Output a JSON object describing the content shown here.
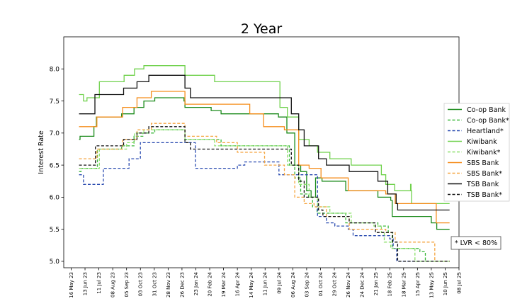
{
  "chart_data": {
    "type": "line",
    "title": "2 Year",
    "xlabel": "",
    "ylabel": "Interest Rate",
    "xlim": [
      "2023-05-01",
      "2025-07-08"
    ],
    "ylim": [
      4.9,
      8.5
    ],
    "yticks": [
      5.0,
      5.5,
      6.0,
      6.5,
      7.0,
      7.5,
      8.0
    ],
    "ytick_labels": [
      "5.0",
      "5.5",
      "6.0",
      "6.5",
      "7.0",
      "7.5",
      "8.0"
    ],
    "xticks": [
      "2023-05-16",
      "2023-06-13",
      "2023-07-11",
      "2023-08-08",
      "2023-09-05",
      "2023-10-03",
      "2023-10-31",
      "2023-11-28",
      "2023-12-26",
      "2024-01-23",
      "2024-02-20",
      "2024-03-19",
      "2024-04-16",
      "2024-05-14",
      "2024-06-11",
      "2024-07-09",
      "2024-08-06",
      "2024-09-03",
      "2024-10-01",
      "2024-10-29",
      "2024-11-26",
      "2024-12-24",
      "2025-01-21",
      "2025-02-18",
      "2025-03-18",
      "2025-04-15",
      "2025-05-13",
      "2025-06-10",
      "2025-07-08"
    ],
    "xtick_labels": [
      "16 May 23",
      "13 Jun 23",
      "11 Jul 23",
      "08 Aug 23",
      "05 Sep 23",
      "03 Oct 23",
      "31 Oct 23",
      "28 Nov 23",
      "26 Dec 23",
      "23 Jan 24",
      "20 Feb 24",
      "19 Mar 24",
      "16 Apr 24",
      "14 May 24",
      "11 Jun 24",
      "09 Jul 24",
      "06 Aug 24",
      "03 Sep 24",
      "01 Oct 24",
      "29 Oct 24",
      "26 Nov 24",
      "24 Dec 24",
      "21 Jan 25",
      "18 Feb 25",
      "18 Mar 25",
      "15 Apr 25",
      "13 May 25",
      "10 Jun 25",
      "08 Jul 25"
    ],
    "grid": false,
    "legend_position": "right",
    "annotation": "* LVR < 80%",
    "series": [
      {
        "name": "Co-op Bank",
        "color": "#1a8a1a",
        "dash": "solid",
        "x": [
          "2023-06-01",
          "2023-06-03",
          "2023-07-01",
          "2023-07-06",
          "2023-08-26",
          "2023-09-20",
          "2023-10-10",
          "2023-11-01",
          "2023-12-30",
          "2024-01-01",
          "2024-02-23",
          "2024-03-14",
          "2024-04-16",
          "2024-06-01",
          "2024-07-08",
          "2024-07-25",
          "2024-08-10",
          "2024-08-22",
          "2024-09-03",
          "2024-09-12",
          "2024-09-21",
          "2024-10-04",
          "2024-11-21",
          "2024-12-05",
          "2025-01-25",
          "2025-02-20",
          "2025-02-23",
          "2025-04-15",
          "2025-05-13",
          "2025-05-24",
          "2025-06-01",
          "2025-06-19"
        ],
        "y": [
          6.9,
          6.95,
          7.1,
          7.25,
          7.3,
          7.4,
          7.5,
          7.55,
          7.5,
          7.4,
          7.35,
          7.3,
          7.3,
          7.3,
          7.25,
          7.0,
          6.5,
          6.4,
          6.1,
          6.0,
          6.3,
          6.25,
          6.1,
          6.1,
          6.0,
          5.95,
          5.7,
          5.7,
          5.6,
          5.5,
          5.5,
          5.5
        ]
      },
      {
        "name": "Co-op Bank*",
        "color": "#3cb83c",
        "dash": "dashed",
        "x": [
          "2023-06-01",
          "2023-06-05",
          "2023-07-08",
          "2023-08-26",
          "2023-09-20",
          "2023-10-08",
          "2023-11-01",
          "2023-12-30",
          "2024-01-01",
          "2024-02-23",
          "2024-03-14",
          "2024-04-16",
          "2024-07-05",
          "2024-07-30",
          "2024-08-10",
          "2024-08-22",
          "2024-09-07",
          "2024-09-15",
          "2024-09-24",
          "2024-10-08",
          "2024-11-21",
          "2024-12-05",
          "2025-01-25",
          "2025-02-15",
          "2025-02-23",
          "2025-04-15",
          "2025-04-20",
          "2025-05-01",
          "2025-05-13",
          "2025-06-19"
        ],
        "y": [
          6.4,
          6.45,
          6.75,
          6.8,
          6.95,
          7.0,
          7.05,
          7.05,
          6.9,
          6.9,
          6.8,
          6.8,
          6.8,
          6.5,
          6.3,
          6.05,
          6.0,
          5.85,
          5.75,
          5.75,
          5.6,
          5.6,
          5.55,
          5.45,
          5.2,
          5.2,
          5.15,
          5.0,
          5.0,
          5.0
        ]
      },
      {
        "name": "Heartland*",
        "color": "#2a4bb0",
        "dash": "dashed",
        "x": [
          "2023-06-01",
          "2023-06-10",
          "2023-07-20",
          "2023-09-10",
          "2023-10-03",
          "2023-12-30",
          "2024-01-22",
          "2024-04-16",
          "2024-05-01",
          "2024-07-09",
          "2024-07-20",
          "2024-08-18",
          "2024-09-25",
          "2024-10-13",
          "2024-10-30",
          "2024-11-26",
          "2024-12-06",
          "2025-02-18",
          "2025-02-25",
          "2025-03-04",
          "2025-04-25",
          "2025-06-19"
        ],
        "y": [
          6.35,
          6.2,
          6.45,
          6.6,
          6.85,
          6.85,
          6.45,
          6.5,
          6.55,
          6.35,
          6.35,
          6.35,
          5.7,
          5.6,
          5.55,
          5.5,
          5.4,
          5.35,
          5.2,
          5.0,
          5.0,
          5.0
        ]
      },
      {
        "name": "Kiwibank",
        "color": "#6fd14b",
        "dash": "solid",
        "x": [
          "2023-06-01",
          "2023-06-10",
          "2023-06-17",
          "2023-07-12",
          "2023-08-31",
          "2023-09-21",
          "2023-10-10",
          "2023-12-29",
          "2024-01-01",
          "2024-03-01",
          "2024-07-11",
          "2024-07-26",
          "2024-08-18",
          "2024-09-08",
          "2024-09-25",
          "2024-10-20",
          "2024-12-02",
          "2025-01-17",
          "2025-02-01",
          "2025-02-10",
          "2025-02-28",
          "2025-03-06",
          "2025-03-18",
          "2025-04-01",
          "2025-04-02",
          "2025-04-03",
          "2025-06-19"
        ],
        "y": [
          7.6,
          7.5,
          7.55,
          7.8,
          7.9,
          8.0,
          8.05,
          8.05,
          7.9,
          7.8,
          7.4,
          7.25,
          6.9,
          6.8,
          6.7,
          6.6,
          6.5,
          6.5,
          6.35,
          6.2,
          6.1,
          6.1,
          6.1,
          6.2,
          6.1,
          5.9,
          5.9
        ]
      },
      {
        "name": "Kiwibank*",
        "color": "#8be06a",
        "dash": "dashed",
        "x": [
          "2023-06-01",
          "2023-06-18",
          "2023-07-12",
          "2023-09-05",
          "2023-09-21",
          "2023-10-10",
          "2023-12-29",
          "2024-01-01",
          "2024-03-01",
          "2024-07-11",
          "2024-07-26",
          "2024-08-18",
          "2024-09-08",
          "2024-09-25",
          "2024-10-20",
          "2024-12-02",
          "2025-01-17",
          "2025-02-01",
          "2025-02-07",
          "2025-02-20",
          "2025-03-21",
          "2025-04-10",
          "2025-06-19"
        ],
        "y": [
          6.45,
          6.45,
          6.75,
          6.85,
          7.0,
          7.05,
          7.05,
          6.9,
          6.8,
          6.8,
          6.5,
          6.2,
          6.0,
          5.85,
          5.75,
          5.6,
          5.55,
          5.45,
          5.3,
          5.2,
          5.2,
          5.0,
          5.0
        ]
      },
      {
        "name": "SBS Bank",
        "color": "#f58d1c",
        "dash": "solid",
        "x": [
          "2023-06-01",
          "2023-07-01",
          "2023-07-07",
          "2023-08-28",
          "2023-09-26",
          "2023-10-25",
          "2023-11-01",
          "2024-01-01",
          "2024-03-01",
          "2024-05-11",
          "2024-06-08",
          "2024-07-01",
          "2024-07-20",
          "2024-08-18",
          "2024-09-01",
          "2024-09-08",
          "2024-10-02",
          "2024-11-26",
          "2025-01-21",
          "2025-02-10",
          "2025-03-01",
          "2025-05-13",
          "2025-05-23",
          "2025-06-19"
        ],
        "y": [
          7.1,
          7.1,
          7.25,
          7.4,
          7.55,
          7.65,
          7.65,
          7.45,
          7.45,
          7.3,
          7.1,
          7.1,
          7.05,
          6.5,
          6.5,
          6.45,
          6.3,
          6.1,
          6.1,
          6.05,
          5.9,
          5.9,
          5.6,
          5.6
        ]
      },
      {
        "name": "SBS Bank*",
        "color": "#f5a540",
        "dash": "dashed",
        "x": [
          "2023-06-01",
          "2023-07-01",
          "2023-07-07",
          "2023-08-28",
          "2023-09-26",
          "2023-10-25",
          "2024-01-01",
          "2024-02-01",
          "2024-03-05",
          "2024-04-16",
          "2024-06-10",
          "2024-07-01",
          "2024-07-20",
          "2024-08-10",
          "2024-08-29",
          "2024-09-18",
          "2024-10-13",
          "2024-11-28",
          "2025-01-20",
          "2025-02-10",
          "2025-03-01",
          "2025-05-20",
          "2025-06-19"
        ],
        "y": [
          6.6,
          6.6,
          6.75,
          6.9,
          7.05,
          7.15,
          6.95,
          6.95,
          6.85,
          6.7,
          6.5,
          6.5,
          6.35,
          6.0,
          5.9,
          5.85,
          5.7,
          5.5,
          5.5,
          5.45,
          5.3,
          5.0,
          5.0
        ]
      },
      {
        "name": "TSB Bank",
        "color": "#111111",
        "dash": "solid",
        "x": [
          "2023-06-01",
          "2023-07-01",
          "2023-07-03",
          "2023-08-30",
          "2023-09-26",
          "2023-10-20",
          "2023-12-31",
          "2024-01-01",
          "2024-01-12",
          "2024-07-07",
          "2024-08-03",
          "2024-08-18",
          "2024-08-29",
          "2024-09-27",
          "2024-10-13",
          "2024-11-28",
          "2025-01-25",
          "2025-02-14",
          "2025-03-03",
          "2025-03-06",
          "2025-06-19"
        ],
        "y": [
          7.3,
          7.3,
          7.6,
          7.7,
          7.8,
          7.9,
          7.9,
          7.7,
          7.55,
          7.55,
          7.3,
          7.05,
          6.8,
          6.6,
          6.5,
          6.4,
          6.25,
          6.05,
          5.9,
          5.8,
          5.8
        ]
      },
      {
        "name": "TSB Bank*",
        "color": "#111111",
        "dash": "dashed",
        "x": [
          "2023-06-01",
          "2023-07-01",
          "2023-07-04",
          "2023-08-30",
          "2023-09-26",
          "2023-10-20",
          "2023-12-30",
          "2024-01-01",
          "2024-01-12",
          "2024-07-07",
          "2024-08-03",
          "2024-08-18",
          "2024-08-29",
          "2024-09-27",
          "2024-10-06",
          "2024-11-28",
          "2025-01-20",
          "2025-02-14",
          "2025-02-24",
          "2025-03-06",
          "2025-06-19"
        ],
        "y": [
          6.5,
          6.5,
          6.8,
          6.9,
          7.0,
          7.1,
          7.1,
          6.85,
          6.75,
          6.75,
          6.5,
          6.25,
          6.0,
          5.8,
          5.7,
          5.6,
          5.45,
          5.45,
          5.3,
          5.0,
          5.0
        ]
      }
    ]
  }
}
